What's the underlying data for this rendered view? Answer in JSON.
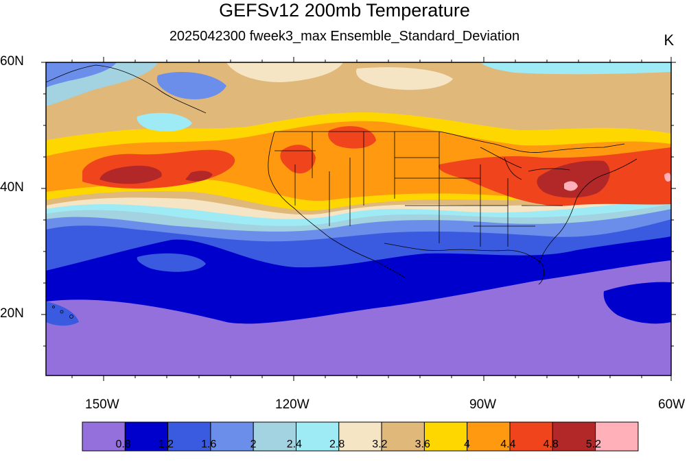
{
  "title": "GEFSv12 200mb Temperature",
  "subtitle": "2025042300 fweek3_max Ensemble_Standard_Deviation",
  "units": "K",
  "lat_labels": [
    "60N",
    "40N",
    "20N"
  ],
  "lon_labels": [
    "150W",
    "120W",
    "90W",
    "60W"
  ],
  "legend": {
    "colors": [
      "#9370DB",
      "#0000CD",
      "#3A5BE0",
      "#6B8EEB",
      "#A3D3E0",
      "#9FEBF5",
      "#F5E5C5",
      "#E0B87A",
      "#FFD700",
      "#FF9A10",
      "#F0441C",
      "#B22828",
      "#FFB0B8"
    ],
    "labels": [
      "0.8",
      "1.2",
      "1.6",
      "2",
      "2.4",
      "2.8",
      "3.2",
      "3.6",
      "4",
      "4.4",
      "4.8",
      "5.2"
    ]
  }
}
